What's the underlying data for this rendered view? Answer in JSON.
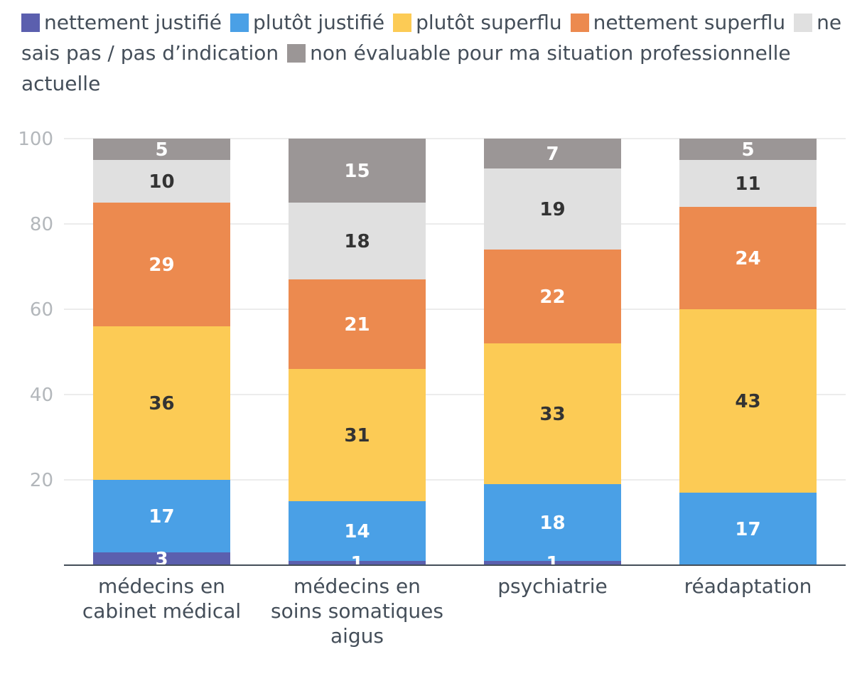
{
  "chart_data": {
    "type": "bar",
    "stacked": true,
    "categories": [
      [
        "médecins en",
        "cabinet médical"
      ],
      [
        "médecins en",
        "soins somatiques",
        "aigus"
      ],
      [
        "psychiatrie"
      ],
      [
        "réadaptation"
      ]
    ],
    "series": [
      {
        "name": "nettement justifié",
        "color": "#5b5fae",
        "values": [
          3,
          1,
          1,
          0
        ]
      },
      {
        "name": "plutôt justifié",
        "color": "#4aa0e6",
        "values": [
          17,
          14,
          18,
          17
        ]
      },
      {
        "name": "plutôt superflu",
        "color": "#fccb55",
        "values": [
          36,
          31,
          33,
          43
        ]
      },
      {
        "name": "nettement superflu",
        "color": "#ec8a4f",
        "values": [
          29,
          21,
          22,
          24
        ]
      },
      {
        "name": "ne sais pas / pas d’indication",
        "color": "#e0e0e0",
        "values": [
          10,
          18,
          19,
          11
        ]
      },
      {
        "name": "non évaluable pour ma situation professionnelle actuelle",
        "color": "#9b9696",
        "values": [
          5,
          15,
          7,
          5
        ]
      }
    ],
    "data_label_colors": {
      "nettement justifié": "#ffffff",
      "plutôt justifié": "#ffffff",
      "plutôt superflu": "#333333",
      "nettement superflu": "#ffffff",
      "ne sais pas / pas d’indication": "#333333",
      "non évaluable pour ma situation professionnelle actuelle": "#ffffff"
    },
    "ylim": [
      0,
      100
    ],
    "yticks": [
      20,
      40,
      60,
      80,
      100
    ],
    "grid": true,
    "legend_position": "top"
  }
}
